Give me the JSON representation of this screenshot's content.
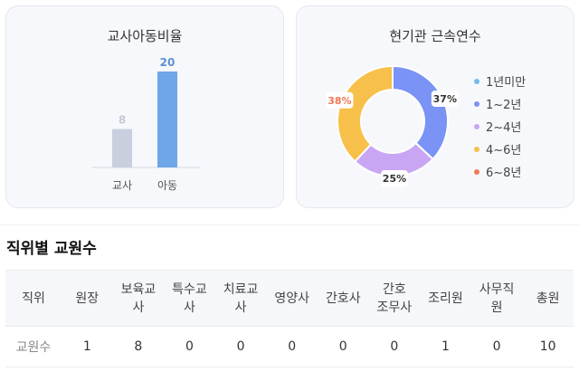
{
  "teacher_child": {
    "title": "교사아동비율",
    "chart_data": {
      "type": "bar",
      "categories": [
        "교사",
        "아동"
      ],
      "values": [
        8,
        20
      ],
      "colors": [
        "#c9cfdf",
        "#6ea6e8"
      ],
      "value_label_colors": [
        "#c3c9d8",
        "#5b8fd6"
      ],
      "ylim": [
        0,
        20
      ]
    }
  },
  "tenure": {
    "title": "현기관 근속연수",
    "chart_data": {
      "type": "pie",
      "categories": [
        "1년미만",
        "1~2년",
        "2~4년",
        "4~6년",
        "6~8년"
      ],
      "values": [
        0,
        37,
        25,
        38,
        0
      ],
      "colors": [
        "#74b9f0",
        "#7a93f5",
        "#c9a6f4",
        "#f7c04a",
        "#f07858"
      ],
      "labels": [
        "37%",
        "25%",
        "38%"
      ],
      "label_colors": [
        "#333333",
        "#333333",
        "#f07858"
      ]
    }
  },
  "staff": {
    "title": "직위별 교원수",
    "header_first": "직위",
    "columns": [
      [
        "원장"
      ],
      [
        "보육교",
        "사"
      ],
      [
        "특수교",
        "사"
      ],
      [
        "치료교",
        "사"
      ],
      [
        "영양사"
      ],
      [
        "간호사"
      ],
      [
        "간호",
        "조무사"
      ],
      [
        "조리원"
      ],
      [
        "사무직",
        "원"
      ],
      [
        "총원"
      ]
    ],
    "row_label": "교원수",
    "values": [
      "1",
      "8",
      "0",
      "0",
      "0",
      "0",
      "0",
      "1",
      "0",
      "10"
    ]
  }
}
